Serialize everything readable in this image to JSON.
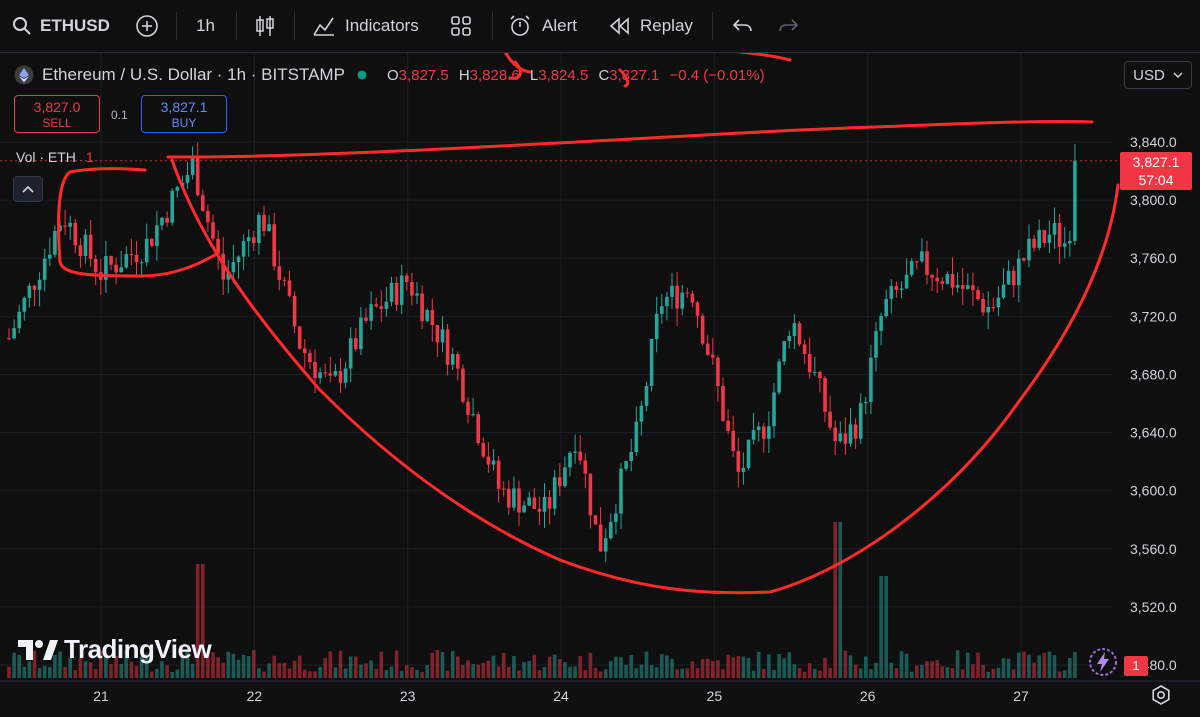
{
  "toolbar": {
    "symbol": "ETHUSD",
    "interval": "1h",
    "indicators_label": "Indicators",
    "alert_label": "Alert",
    "replay_label": "Replay"
  },
  "legend": {
    "title": "Ethereum / U.S. Dollar · 1h · BITSTAMP",
    "o_key": "O",
    "o_val": "3,827.5",
    "h_key": "H",
    "h_val": "3,828.6",
    "l_key": "L",
    "l_val": "3,824.5",
    "c_key": "C",
    "c_val": "3,827.1",
    "change": "−0.4 (−0.01%)"
  },
  "trade": {
    "sell_price": "3,827.0",
    "sell_label": "SELL",
    "spread": "0.1",
    "buy_price": "3,827.1",
    "buy_label": "BUY"
  },
  "volume": {
    "label": "Vol · ETH",
    "value": "1",
    "tag": "1"
  },
  "currency": "USD",
  "last_price": {
    "price": "3,827.1",
    "countdown": "57:04"
  },
  "branding": "TradingView",
  "colors": {
    "up": "#26a69a",
    "down": "#f23645",
    "drawing": "#ff2a2a",
    "background": "#0f0f0f"
  },
  "chart_data": {
    "type": "candlestick",
    "symbol": "ETHUSD",
    "interval": "1h",
    "exchange": "BITSTAMP",
    "y_ticks": [
      3840,
      3800,
      3760,
      3720,
      3680,
      3640,
      3600,
      3560,
      3520,
      3480
    ],
    "y_tick_labels": [
      "3,840.0",
      "3,800.0",
      "3,760.0",
      "3,720.0",
      "3,680.0",
      "3,640.0",
      "3,600.0",
      "3,560.0",
      "3,520.0",
      "3,480.0"
    ],
    "x_tick_labels": [
      "21",
      "22",
      "23",
      "24",
      "25",
      "26",
      "27"
    ],
    "ylim": [
      3468,
      3863
    ],
    "last_price": 3827.1,
    "price_path": [
      {
        "day": 20.4,
        "price": 3705
      },
      {
        "day": 20.75,
        "price": 3790
      },
      {
        "day": 21.0,
        "price": 3750
      },
      {
        "day": 21.3,
        "price": 3770
      },
      {
        "day": 21.6,
        "price": 3825
      },
      {
        "day": 21.8,
        "price": 3745
      },
      {
        "day": 22.05,
        "price": 3790
      },
      {
        "day": 22.3,
        "price": 3700
      },
      {
        "day": 22.5,
        "price": 3670
      },
      {
        "day": 22.75,
        "price": 3720
      },
      {
        "day": 23.0,
        "price": 3745
      },
      {
        "day": 23.3,
        "price": 3690
      },
      {
        "day": 23.6,
        "price": 3600
      },
      {
        "day": 23.9,
        "price": 3585
      },
      {
        "day": 24.1,
        "price": 3640
      },
      {
        "day": 24.25,
        "price": 3560
      },
      {
        "day": 24.5,
        "price": 3640
      },
      {
        "day": 24.65,
        "price": 3730
      },
      {
        "day": 24.85,
        "price": 3740
      },
      {
        "day": 25.0,
        "price": 3680
      },
      {
        "day": 25.15,
        "price": 3610
      },
      {
        "day": 25.35,
        "price": 3650
      },
      {
        "day": 25.5,
        "price": 3720
      },
      {
        "day": 25.65,
        "price": 3680
      },
      {
        "day": 25.8,
        "price": 3630
      },
      {
        "day": 25.95,
        "price": 3650
      },
      {
        "day": 26.1,
        "price": 3725
      },
      {
        "day": 26.35,
        "price": 3755
      },
      {
        "day": 26.55,
        "price": 3745
      },
      {
        "day": 26.8,
        "price": 3725
      },
      {
        "day": 27.05,
        "price": 3765
      },
      {
        "day": 27.2,
        "price": 3778
      },
      {
        "day": 27.3,
        "price": 3770
      },
      {
        "day": 27.38,
        "price": 3826
      }
    ],
    "volume_spikes": [
      {
        "day": 21.65,
        "size": 0.9
      },
      {
        "day": 25.8,
        "size": 1.6
      },
      {
        "day": 26.1,
        "size": 0.7
      }
    ]
  }
}
